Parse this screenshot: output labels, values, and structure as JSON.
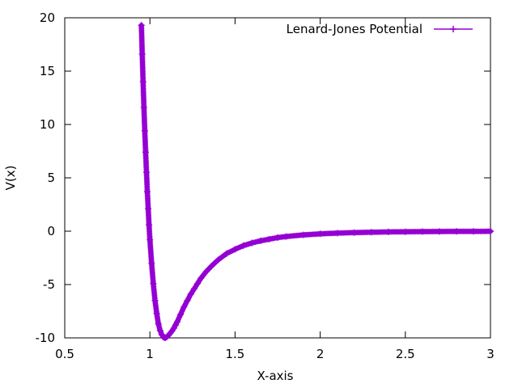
{
  "chart_data": {
    "type": "scatter",
    "title": "",
    "xlabel": "X-axis",
    "ylabel": "V(x)",
    "xlim": [
      0.5,
      3
    ],
    "ylim": [
      -10,
      20
    ],
    "x_ticks": [
      0.5,
      1,
      1.5,
      2,
      2.5,
      3
    ],
    "y_ticks": [
      -10,
      -5,
      0,
      5,
      10,
      15,
      20
    ],
    "x_tick_labels": [
      "0.5",
      "1",
      "1.5",
      "2",
      "2.5",
      "3"
    ],
    "y_tick_labels": [
      "-10",
      "-5",
      "0",
      "5",
      "10",
      "15",
      "20"
    ],
    "grid": false,
    "legend_position": "top-right",
    "series": [
      {
        "name": "Lenard-Jones Potential",
        "color": "#9400d3",
        "marker": "plus",
        "x": [
          0.95,
          0.955,
          0.96,
          0.965,
          0.97,
          0.975,
          0.98,
          0.985,
          0.99,
          0.995,
          1.0,
          1.01,
          1.02,
          1.03,
          1.04,
          1.05,
          1.06,
          1.07,
          1.08,
          1.09,
          1.1,
          1.11,
          1.12,
          1.13,
          1.14,
          1.15,
          1.16,
          1.18,
          1.2,
          1.22,
          1.24,
          1.26,
          1.28,
          1.3,
          1.33,
          1.36,
          1.4,
          1.45,
          1.5,
          1.55,
          1.6,
          1.65,
          1.7,
          1.75,
          1.8,
          1.9,
          2.0,
          2.1,
          2.2,
          2.3,
          2.4,
          2.5,
          2.6,
          2.7,
          2.8,
          2.9,
          3.0
        ],
        "y": [
          19.3,
          16.6,
          14.0,
          11.6,
          9.4,
          7.4,
          5.5,
          3.7,
          2.1,
          0.6,
          -0.8,
          -3.0,
          -4.9,
          -6.5,
          -7.7,
          -8.7,
          -9.3,
          -9.7,
          -9.95,
          -10.0,
          -9.9,
          -9.75,
          -9.55,
          -9.35,
          -9.1,
          -8.8,
          -8.5,
          -7.8,
          -7.1,
          -6.5,
          -5.9,
          -5.4,
          -4.9,
          -4.4,
          -3.8,
          -3.3,
          -2.7,
          -2.1,
          -1.7,
          -1.35,
          -1.1,
          -0.9,
          -0.75,
          -0.6,
          -0.5,
          -0.35,
          -0.25,
          -0.18,
          -0.13,
          -0.1,
          -0.07,
          -0.05,
          -0.04,
          -0.03,
          -0.02,
          -0.015,
          -0.01
        ]
      }
    ]
  }
}
